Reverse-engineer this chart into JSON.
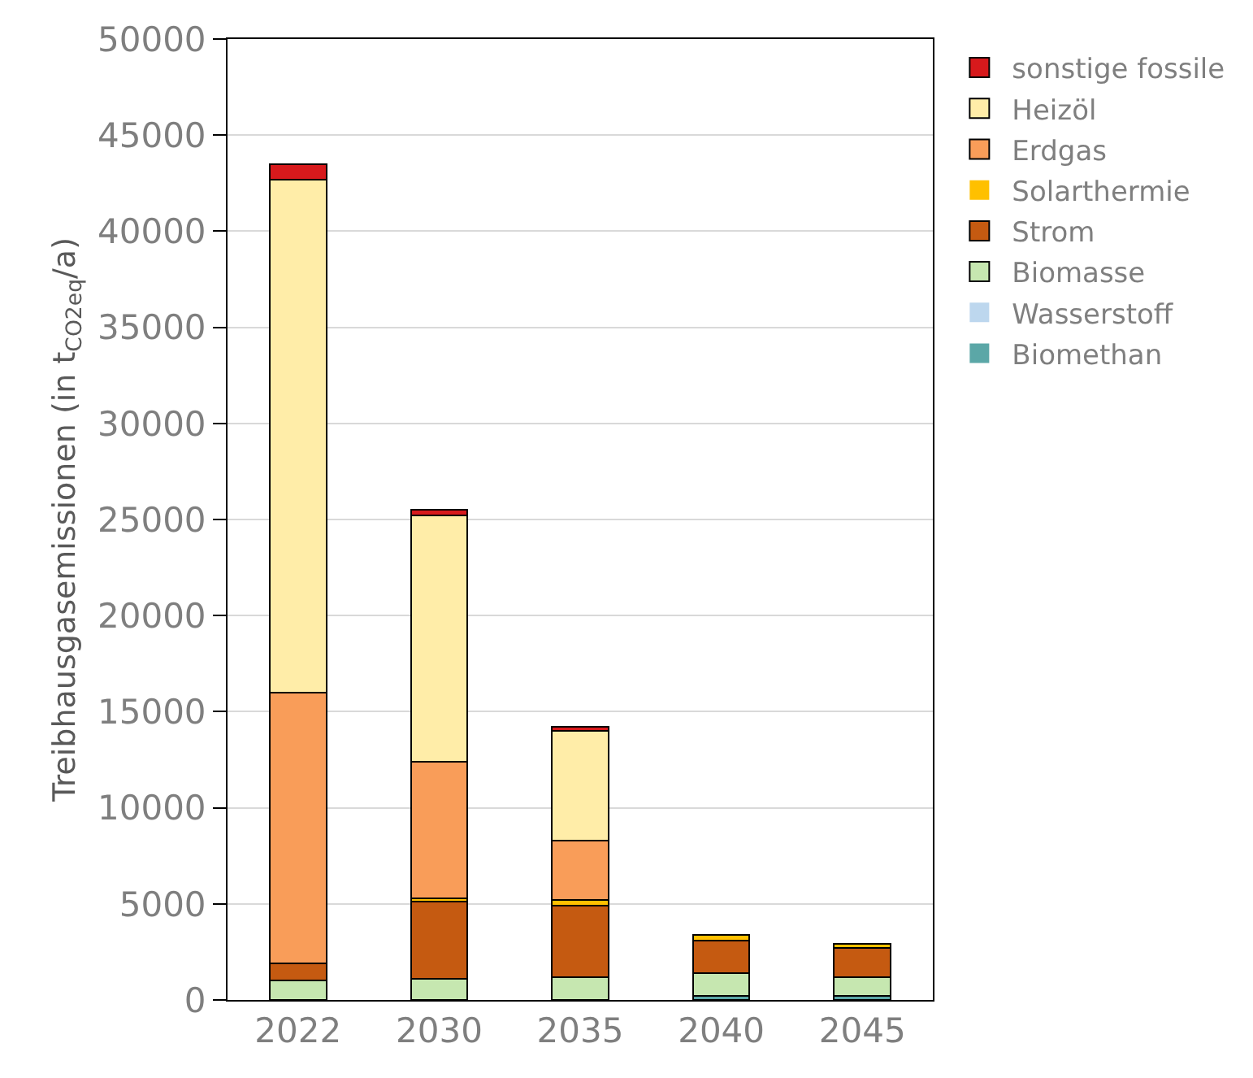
{
  "chart_data": {
    "type": "bar",
    "stacked": true,
    "ylabel": "Treibhausgasemissionen (in t$_{CO2eq}$/a)",
    "categories": [
      "2022",
      "2030",
      "2035",
      "2040",
      "2045"
    ],
    "series": [
      {
        "name": "Biomethan",
        "color": "#5ba7a7",
        "values": [
          0,
          0,
          0,
          200,
          200
        ]
      },
      {
        "name": "Wasserstoff",
        "color": "#bdd7ee",
        "values": [
          0,
          0,
          0,
          0,
          0
        ]
      },
      {
        "name": "Biomasse",
        "color": "#c6e7b0",
        "values": [
          1000,
          1100,
          1200,
          1200,
          1000
        ]
      },
      {
        "name": "Strom",
        "color": "#c55a11",
        "values": [
          900,
          4000,
          3700,
          1700,
          1500
        ]
      },
      {
        "name": "Solarthermie",
        "color": "#ffc000",
        "values": [
          0,
          200,
          300,
          300,
          200
        ]
      },
      {
        "name": "Erdgas",
        "color": "#f99d59",
        "values": [
          14100,
          7100,
          3100,
          0,
          0
        ]
      },
      {
        "name": "Heizöl",
        "color": "#ffeda8",
        "values": [
          26700,
          12800,
          5700,
          0,
          0
        ]
      },
      {
        "name": "sonstige fossile",
        "color": "#d7191c",
        "values": [
          800,
          300,
          200,
          0,
          0
        ]
      }
    ],
    "ylim": [
      0,
      50000
    ],
    "yticks": [
      0,
      5000,
      10000,
      15000,
      20000,
      25000,
      30000,
      35000,
      40000,
      45000,
      50000
    ],
    "grid": "y",
    "legend": "right"
  }
}
